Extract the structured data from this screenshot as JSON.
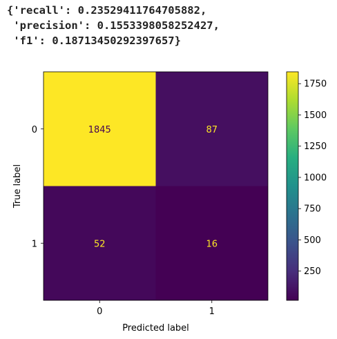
{
  "output": {
    "lines": [
      "{'recall': 0.23529411764705882,",
      " 'precision': 0.1553398058252427,",
      " 'f1': 0.18713450292397657}"
    ]
  },
  "chart_data": {
    "type": "heatmap",
    "title": "",
    "xlabel": "Predicted label",
    "ylabel": "True label",
    "x_categories": [
      "0",
      "1"
    ],
    "y_categories": [
      "0",
      "1"
    ],
    "values": [
      [
        1845,
        87
      ],
      [
        52,
        16
      ]
    ],
    "colormap": "viridis",
    "colorbar": {
      "ticks": [
        250,
        500,
        750,
        1000,
        1250,
        1500,
        1750
      ],
      "range": [
        16,
        1845
      ]
    },
    "colors": {
      "high": "#fde725",
      "low": "#440154",
      "cell_text_on_high": "#440154",
      "cell_text_on_low": "#fde725"
    }
  }
}
